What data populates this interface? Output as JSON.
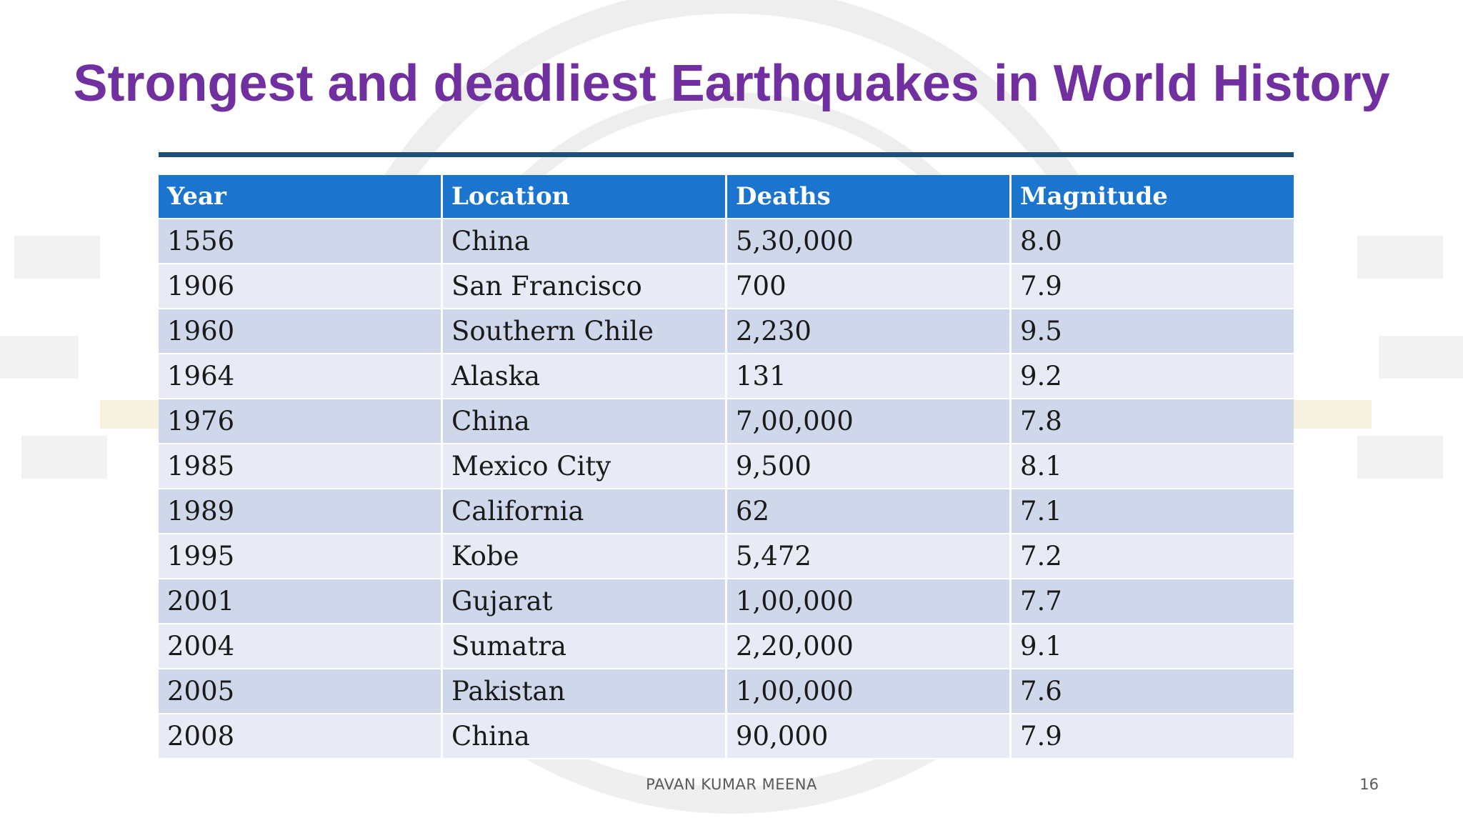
{
  "slide": {
    "title": "Strongest and deadliest Earthquakes in World History",
    "footer": "PAVAN KUMAR MEENA",
    "page_number": "16"
  },
  "table": {
    "headers": [
      "Year",
      "Location",
      "Deaths",
      "Magnitude"
    ],
    "rows": [
      [
        "1556",
        "China",
        "5,30,000",
        "8.0"
      ],
      [
        "1906",
        "San Francisco",
        "700",
        "7.9"
      ],
      [
        "1960",
        "Southern Chile",
        "2,230",
        "9.5"
      ],
      [
        "1964",
        "Alaska",
        "131",
        "9.2"
      ],
      [
        "1976",
        "China",
        "7,00,000",
        "7.8"
      ],
      [
        "1985",
        "Mexico City",
        "9,500",
        "8.1"
      ],
      [
        "1989",
        "California",
        "62",
        "7.1"
      ],
      [
        "1995",
        "Kobe",
        "5,472",
        "7.2"
      ],
      [
        "2001",
        "Gujarat",
        "1,00,000",
        "7.7"
      ],
      [
        "2004",
        "Sumatra",
        "2,20,000",
        "9.1"
      ],
      [
        "2005",
        "Pakistan",
        "1,00,000",
        "7.6"
      ],
      [
        "2008",
        "China",
        "90,000",
        "7.9"
      ]
    ]
  },
  "colors": {
    "title": "#7030a0",
    "header_bg": "#1b75cf",
    "row_odd": "#cfd7ea",
    "row_even": "#e8ebf5",
    "rule": "#1f4e79"
  }
}
